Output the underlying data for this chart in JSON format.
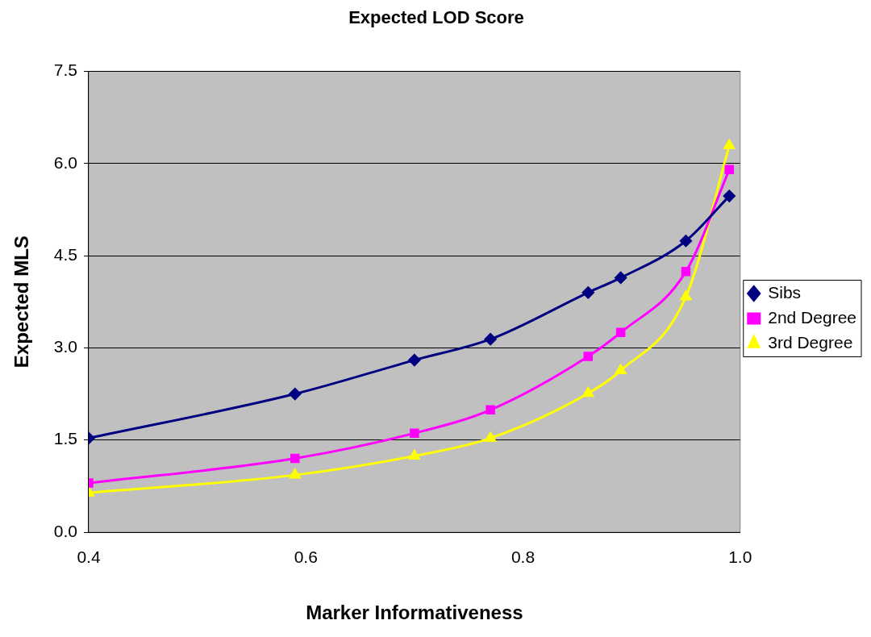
{
  "chart_data": {
    "type": "line",
    "title": "Expected LOD Score",
    "xlabel": "Marker Informativeness",
    "ylabel": "Expected MLS",
    "x": [
      0.4,
      0.59,
      0.7,
      0.77,
      0.86,
      0.89,
      0.95,
      0.99
    ],
    "series": [
      {
        "name": "Sibs",
        "color": "#000080",
        "marker": "diamond",
        "values": [
          1.53,
          2.25,
          2.8,
          3.14,
          3.9,
          4.14,
          4.74,
          5.47
        ]
      },
      {
        "name": "2nd Degree",
        "color": "#ff00ff",
        "marker": "square",
        "values": [
          0.8,
          1.2,
          1.61,
          1.99,
          2.86,
          3.25,
          4.24,
          5.9
        ]
      },
      {
        "name": "3rd Degree",
        "color": "#ffff00",
        "marker": "triangle",
        "values": [
          0.64,
          0.93,
          1.24,
          1.53,
          2.26,
          2.63,
          3.83,
          6.29
        ]
      }
    ],
    "xlim": [
      0.4,
      1.0
    ],
    "xticks": [
      0.4,
      0.6,
      0.8,
      {
        "value": 1.0,
        "label": "1.0"
      }
    ],
    "ylim": [
      0,
      7.5
    ],
    "yticks": [
      {
        "value": 0,
        "label": "0.0"
      },
      1.5,
      {
        "value": 3,
        "label": "3.0"
      },
      4.5,
      {
        "value": 6,
        "label": "6.0"
      },
      7.5
    ],
    "grid": "y",
    "legend": "right",
    "line_style": "solid"
  }
}
